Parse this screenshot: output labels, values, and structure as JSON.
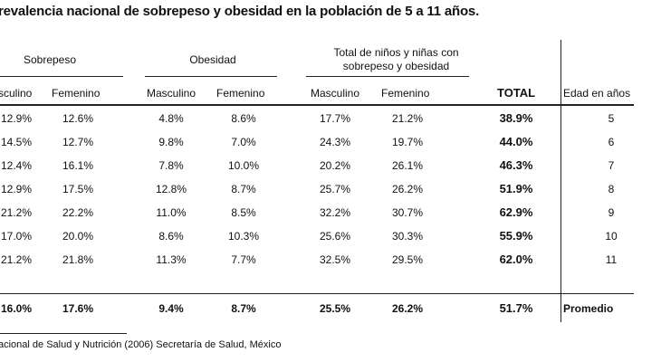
{
  "title": "revalencia nacional de sobrepeso y obesidad en la población de 5 a 11 años.",
  "groups": {
    "sobrepeso": "Sobrepeso",
    "obesidad": "Obesidad",
    "total_line1": "Total de niños y niñas con",
    "total_line2": "sobrepeso y obesidad"
  },
  "headers": {
    "sob_masc": "sculino",
    "sob_fem": "Femenino",
    "obe_masc": "Masculino",
    "obe_fem": "Femenino",
    "tot_masc": "Masculino",
    "tot_fem": "Femenino",
    "total": "TOTAL",
    "edad": "Edad en años"
  },
  "rows": [
    [
      "12.9%",
      "12.6%",
      "4.8%",
      "8.6%",
      "17.7%",
      "21.2%",
      "38.9%",
      "5"
    ],
    [
      "14.5%",
      "12.7%",
      "9.8%",
      "7.0%",
      "24.3%",
      "19.7%",
      "44.0%",
      "6"
    ],
    [
      "12.4%",
      "16.1%",
      "7.8%",
      "10.0%",
      "20.2%",
      "26.1%",
      "46.3%",
      "7"
    ],
    [
      "12.9%",
      "17.5%",
      "12.8%",
      "8.7%",
      "25.7%",
      "26.2%",
      "51.9%",
      "8"
    ],
    [
      "21.2%",
      "22.2%",
      "11.0%",
      "8.5%",
      "32.2%",
      "30.7%",
      "62.9%",
      "9"
    ],
    [
      "17.0%",
      "20.0%",
      "8.6%",
      "10.3%",
      "25.6%",
      "30.3%",
      "55.9%",
      "10"
    ],
    [
      "21.2%",
      "21.8%",
      "11.3%",
      "7.7%",
      "32.5%",
      "29.5%",
      "62.0%",
      "11"
    ]
  ],
  "promedio": [
    "16.0%",
    "17.6%",
    "9.4%",
    "8.7%",
    "25.5%",
    "26.2%",
    "51.7%",
    "Promedio"
  ],
  "footnote": "acional de Salud y Nutrición (2006) Secretaría de Salud, México"
}
